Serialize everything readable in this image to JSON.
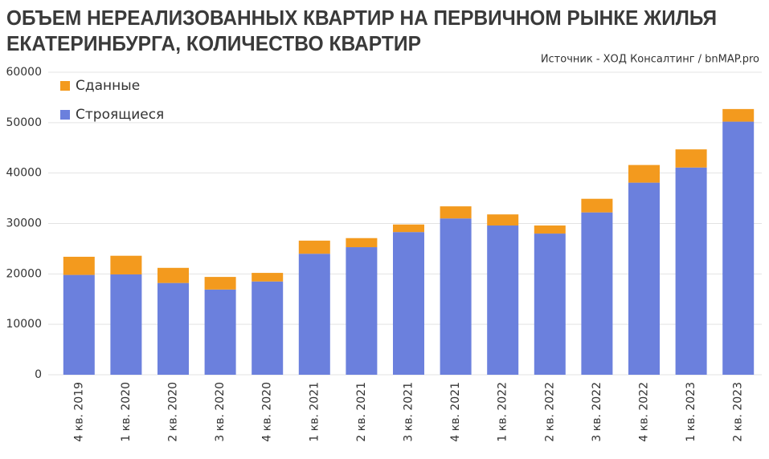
{
  "chart_data": {
    "type": "stacked_bar",
    "title": [
      "ОБЪЕМ НЕРЕАЛИЗОВАННЫХ КВАРТИР НА ПЕРВИЧНОМ РЫНКЕ ЖИЛЬЯ",
      "ЕКАТЕРИНБУРГА, КОЛИЧЕСТВО КВАРТИР"
    ],
    "source": "Источник - ХОД Консалтинг / bnMAP.pro",
    "categories": [
      "4 кв. 2019",
      "1 кв. 2020",
      "2 кв. 2020",
      "3 кв. 2020",
      "4 кв. 2020",
      "1 кв. 2021",
      "2 кв. 2021",
      "3 кв. 2021",
      "4 кв. 2021",
      "1 кв. 2022",
      "2 кв. 2022",
      "3 кв. 2022",
      "4 кв. 2022",
      "1 кв. 2023",
      "2 кв. 2023"
    ],
    "series": [
      {
        "name": "Строящиеся",
        "color": "#6b80dd",
        "values": [
          19800,
          19900,
          18200,
          16900,
          18500,
          24000,
          25300,
          28300,
          31000,
          29600,
          28000,
          32200,
          38100,
          41100,
          50200
        ]
      },
      {
        "name": "Сданные",
        "color": "#f39a1e",
        "values": [
          3600,
          3700,
          3000,
          2500,
          1700,
          2600,
          1800,
          1500,
          2400,
          2200,
          1600,
          2700,
          3500,
          3600,
          2500
        ]
      }
    ],
    "ylim": [
      0,
      60000
    ],
    "yticks": [
      0,
      10000,
      20000,
      30000,
      40000,
      50000,
      60000
    ],
    "grid": true,
    "legend": "top-left"
  }
}
